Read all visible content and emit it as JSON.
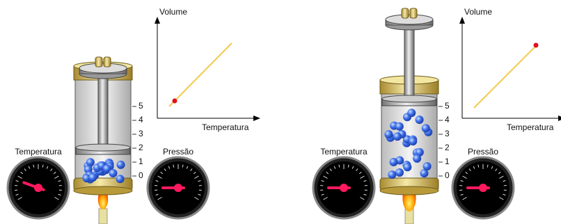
{
  "panels": [
    {
      "graph": {
        "y_label": "Volume",
        "x_label": "Temperatura"
      },
      "scale": [
        "0",
        "1",
        "2",
        "3",
        "4",
        "5"
      ],
      "gauges": {
        "left": "Temperatura",
        "right": "Pressão"
      }
    },
    {
      "graph": {
        "y_label": "Volume",
        "x_label": "Temperatura"
      },
      "scale": [
        "0",
        "1",
        "2",
        "3",
        "4",
        "5"
      ],
      "gauges": {
        "left": "Temperatura",
        "right": "Pressão"
      }
    }
  ]
}
